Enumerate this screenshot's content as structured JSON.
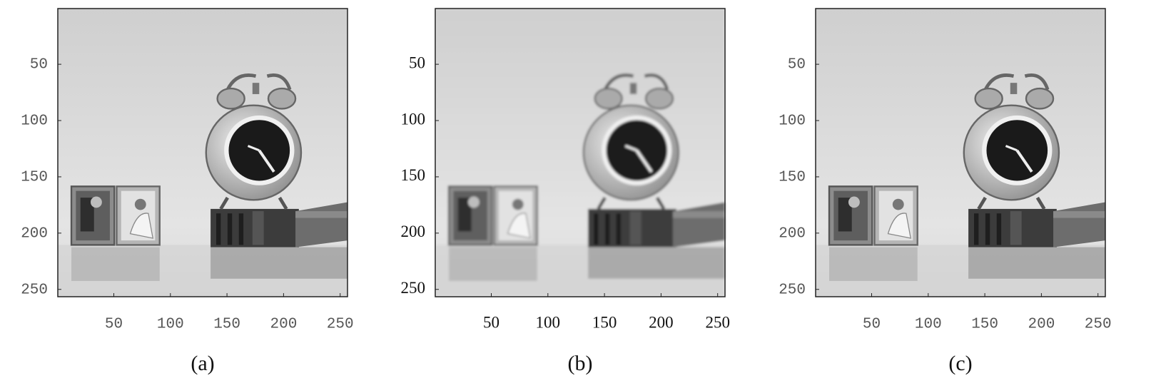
{
  "panels": [
    {
      "caption": "(a)",
      "xlim": [
        0.5,
        256.5
      ],
      "ylim": [
        0.5,
        256.5
      ],
      "xticks": [
        50,
        100,
        150,
        200,
        250
      ],
      "yticks": [
        50,
        100,
        150,
        200,
        250
      ]
    },
    {
      "caption": "(b)",
      "xlim": [
        0.5,
        256.5
      ],
      "ylim": [
        0.5,
        256.5
      ],
      "xticks": [
        50,
        100,
        150,
        200,
        250
      ],
      "yticks": [
        50,
        100,
        150,
        200,
        250
      ]
    },
    {
      "caption": "(c)",
      "xlim": [
        0.5,
        256.5
      ],
      "ylim": [
        0.5,
        256.5
      ],
      "xticks": [
        50,
        100,
        150,
        200,
        250
      ],
      "yticks": [
        50,
        100,
        150,
        200,
        250
      ]
    }
  ]
}
